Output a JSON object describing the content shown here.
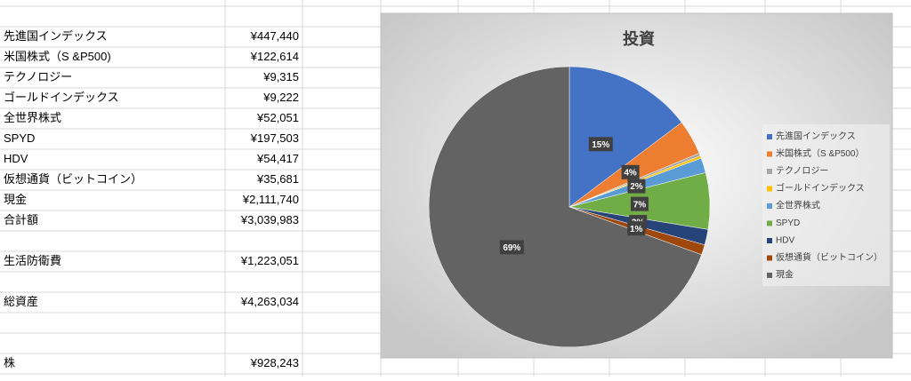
{
  "table": {
    "rows": [
      [
        "先進国インデックス",
        "¥447,440"
      ],
      [
        "米国株式（S &P500)",
        "¥122,614"
      ],
      [
        "テクノロジー",
        "¥9,315"
      ],
      [
        "ゴールドインデックス",
        "¥9,222"
      ],
      [
        "全世界株式",
        "¥52,051"
      ],
      [
        "SPYD",
        "¥197,503"
      ],
      [
        "HDV",
        "¥54,417"
      ],
      [
        "仮想通貨（ビットコイン）",
        "¥35,681"
      ],
      [
        "現金",
        "¥2,111,740"
      ],
      [
        "合計額",
        "¥3,039,983"
      ]
    ],
    "extra": [
      [
        "生活防衛費",
        "¥1,223,051"
      ],
      [
        "総資産",
        "¥4,263,034"
      ],
      [
        "株",
        "¥928,243"
      ]
    ]
  },
  "chart_data": {
    "type": "pie",
    "title": "投資",
    "categories": [
      "先進国インデックス",
      "米国株式（S &P500）",
      "テクノロジー",
      "ゴールドインデックス",
      "全世界株式",
      "SPYD",
      "HDV",
      "仮想通貨（ビットコイン）",
      "現金"
    ],
    "values": [
      14.72,
      4.03,
      0.31,
      0.3,
      1.71,
      6.5,
      1.79,
      1.17,
      69.47
    ],
    "value_labels": [
      "15%",
      "4%",
      null,
      null,
      "2%",
      "7%",
      "2%",
      "1%",
      "69%"
    ],
    "colors": [
      "#4472c4",
      "#ed7d31",
      "#a5a5a5",
      "#ffc000",
      "#5b9bd5",
      "#70ad47",
      "#264478",
      "#9e480e",
      "#636363"
    ],
    "legend": "right"
  }
}
